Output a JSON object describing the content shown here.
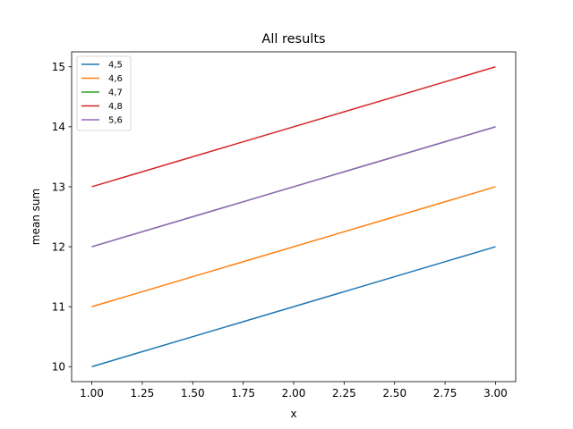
{
  "chart_data": {
    "type": "line",
    "title": "All results",
    "xlabel": "x",
    "ylabel": "mean sum",
    "xlim": [
      0.9,
      3.1
    ],
    "ylim": [
      9.75,
      15.25
    ],
    "xticks": [
      1.0,
      1.25,
      1.5,
      1.75,
      2.0,
      2.25,
      2.5,
      2.75,
      3.0
    ],
    "xtick_labels": [
      "1.00",
      "1.25",
      "1.50",
      "1.75",
      "2.00",
      "2.25",
      "2.50",
      "2.75",
      "3.00"
    ],
    "yticks": [
      10,
      11,
      12,
      13,
      14,
      15
    ],
    "ytick_labels": [
      "10",
      "11",
      "12",
      "13",
      "14",
      "15"
    ],
    "grid": false,
    "legend_position": "top-left",
    "x": [
      1,
      3
    ],
    "series": [
      {
        "name": "4,5",
        "values": [
          10,
          12
        ],
        "color": "#1f77b4"
      },
      {
        "name": "4,6",
        "values": [
          11,
          13
        ],
        "color": "#ff7f0e"
      },
      {
        "name": "4,7",
        "values": [
          12,
          14
        ],
        "color": "#2ca02c"
      },
      {
        "name": "4,8",
        "values": [
          13,
          15
        ],
        "color": "#d62728"
      },
      {
        "name": "5,6",
        "values": [
          12,
          14
        ],
        "color": "#9467bd"
      }
    ]
  }
}
